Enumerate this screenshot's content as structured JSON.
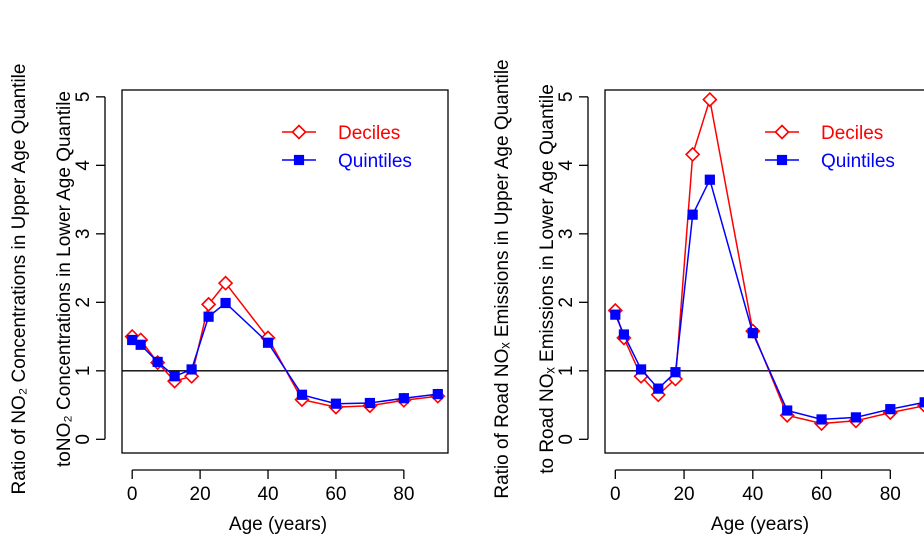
{
  "chart_data": [
    {
      "type": "line",
      "ylabel_line1": "Ratio of NO₂ Concentrations in Upper Age Quantile",
      "ylabel_line2": "toNO₂ Concentrations in Lower Age Quantile",
      "xlabel": "Age (years)",
      "xlim": [
        -3,
        93
      ],
      "ylim": [
        -0.2,
        5.1
      ],
      "xticks": [
        "0",
        "20",
        "40",
        "60",
        "80"
      ],
      "yticks": [
        "0",
        "1",
        "2",
        "3",
        "4",
        "5"
      ],
      "reference_line_y": 1,
      "legend_position": "top-right",
      "series": [
        {
          "name": "Deciles",
          "color": "#ff0000",
          "marker": "open-diamond",
          "x": [
            0,
            2.5,
            7.5,
            12.5,
            17.5,
            22.5,
            27.5,
            40,
            50,
            60,
            70,
            80,
            90
          ],
          "y": [
            1.5,
            1.45,
            1.12,
            0.85,
            0.92,
            1.97,
            2.28,
            1.48,
            0.58,
            0.47,
            0.49,
            0.57,
            0.63
          ]
        },
        {
          "name": "Quintiles",
          "color": "#0000ff",
          "marker": "filled-square",
          "x": [
            0,
            2.5,
            7.5,
            12.5,
            17.5,
            22.5,
            27.5,
            40,
            50,
            60,
            70,
            80,
            90
          ],
          "y": [
            1.45,
            1.38,
            1.13,
            0.92,
            1.02,
            1.79,
            1.99,
            1.41,
            0.65,
            0.52,
            0.53,
            0.6,
            0.66
          ]
        }
      ]
    },
    {
      "type": "line",
      "ylabel_line1": "Ratio of Road NOₓ Emissions in Upper Age Quantile",
      "ylabel_line2": "to Road NOₓ Emissions in Lower Age Quantile",
      "xlabel": "Age (years)",
      "xlim": [
        -3,
        93
      ],
      "ylim": [
        -0.2,
        5.1
      ],
      "xticks": [
        "0",
        "20",
        "40",
        "60",
        "80"
      ],
      "yticks": [
        "0",
        "1",
        "2",
        "3",
        "4",
        "5"
      ],
      "reference_line_y": 1,
      "legend_position": "top-right",
      "series": [
        {
          "name": "Deciles",
          "color": "#ff0000",
          "marker": "open-diamond",
          "x": [
            0,
            2.5,
            7.5,
            12.5,
            17.5,
            22.5,
            27.5,
            40,
            50,
            60,
            70,
            80,
            90
          ],
          "y": [
            1.88,
            1.48,
            0.92,
            0.65,
            0.88,
            4.16,
            4.96,
            1.58,
            0.35,
            0.23,
            0.27,
            0.39,
            0.49
          ]
        },
        {
          "name": "Quintiles",
          "color": "#0000ff",
          "marker": "filled-square",
          "x": [
            0,
            2.5,
            7.5,
            12.5,
            17.5,
            22.5,
            27.5,
            40,
            50,
            60,
            70,
            80,
            90
          ],
          "y": [
            1.82,
            1.53,
            1.02,
            0.74,
            0.98,
            3.28,
            3.79,
            1.55,
            0.42,
            0.29,
            0.32,
            0.44,
            0.54
          ]
        }
      ]
    }
  ]
}
